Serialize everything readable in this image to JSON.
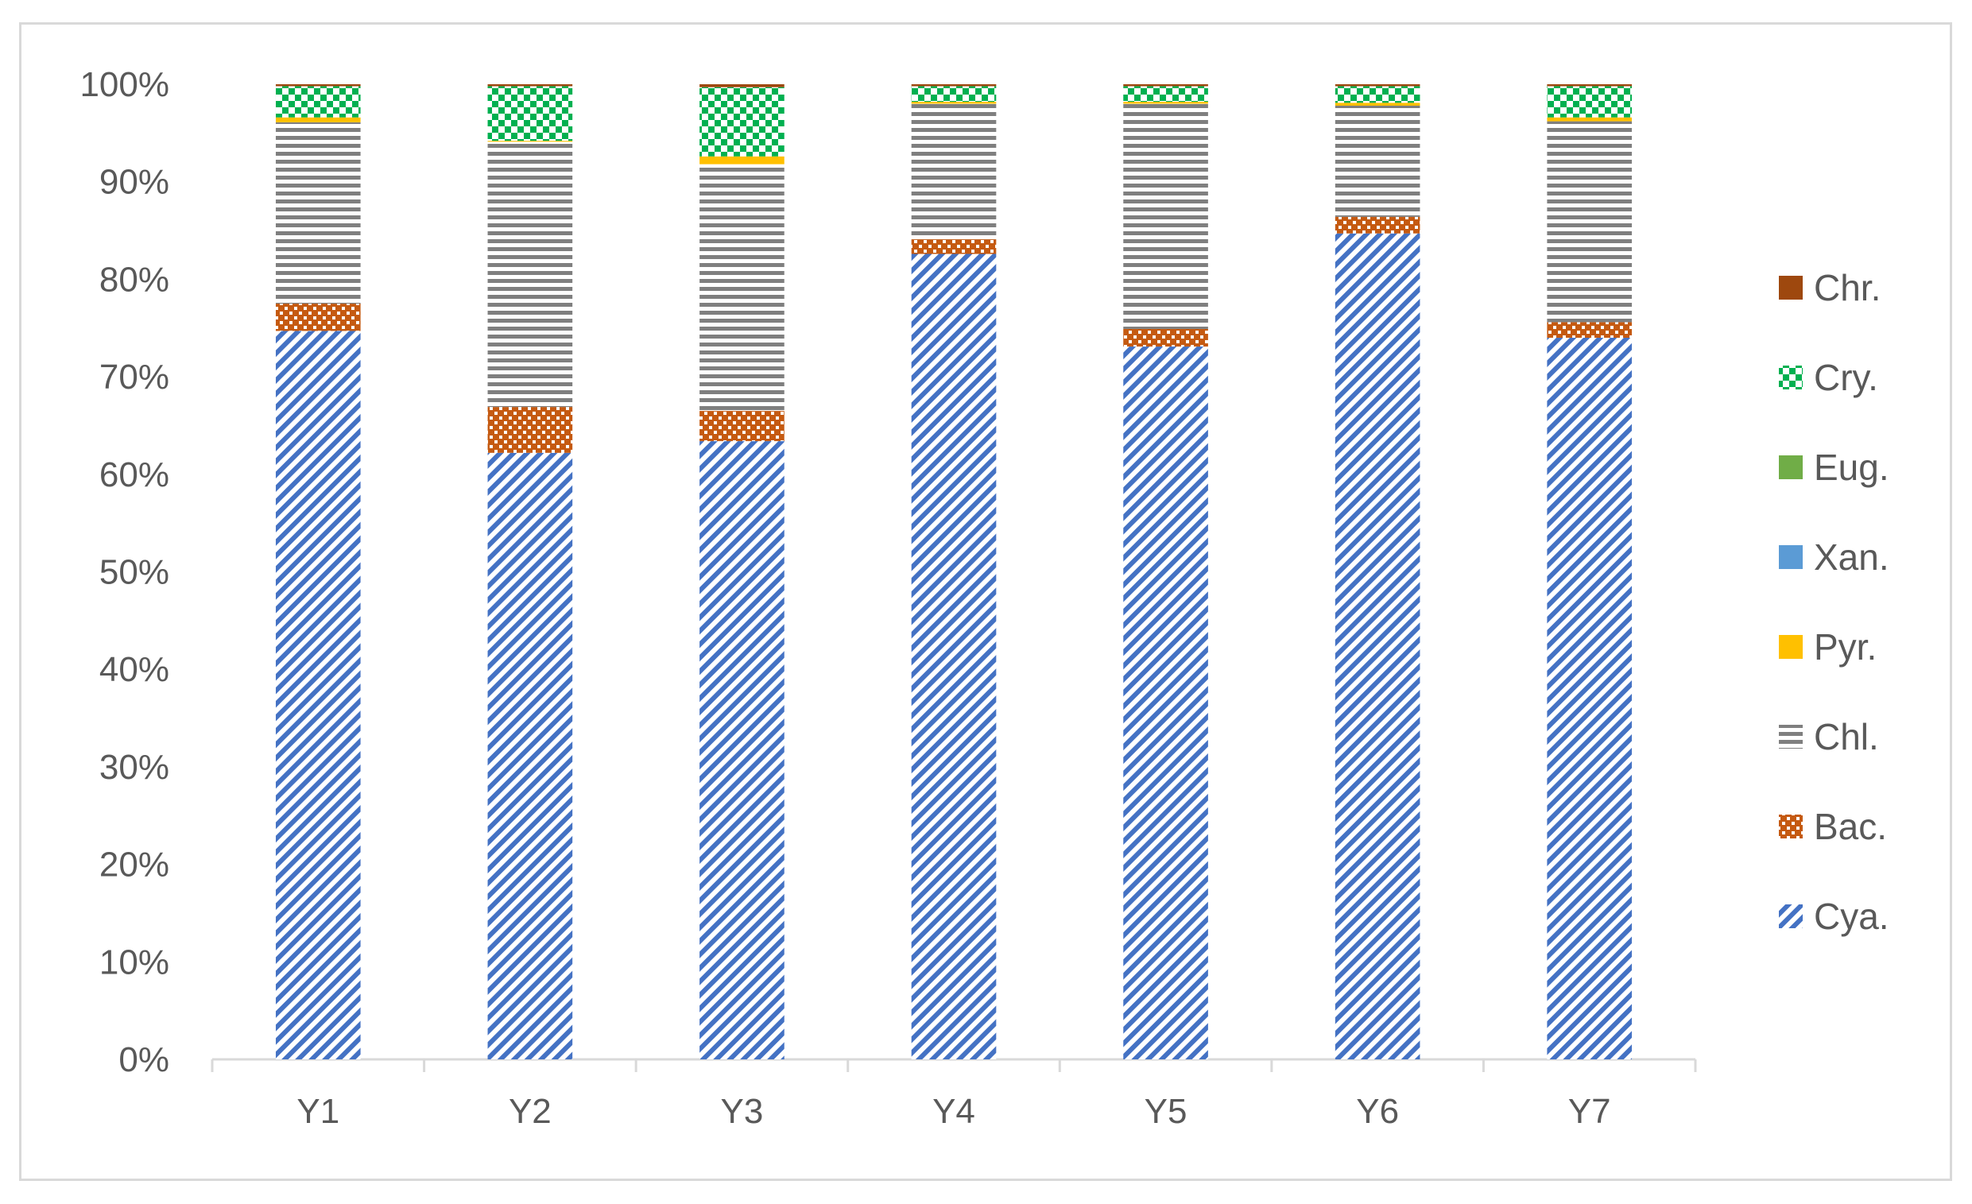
{
  "chart_data": {
    "type": "stacked-bar-percent",
    "title": "",
    "xlabel": "",
    "ylabel": "",
    "ylim": [
      0,
      100
    ],
    "y_ticks": [
      "0%",
      "10%",
      "20%",
      "30%",
      "40%",
      "50%",
      "60%",
      "70%",
      "80%",
      "90%",
      "100%"
    ],
    "categories": [
      "Y1",
      "Y2",
      "Y3",
      "Y4",
      "Y5",
      "Y6",
      "Y7"
    ],
    "legend_position": "right",
    "series": [
      {
        "name": "Cya.",
        "color": "#4472c4",
        "pattern": "diagonal-stripes",
        "values": [
          74.7,
          62.2,
          63.4,
          82.6,
          73.1,
          84.7,
          74.0
        ]
      },
      {
        "name": "Bac.",
        "color": "#c55a11",
        "pattern": "weave",
        "values": [
          2.8,
          4.7,
          3.1,
          1.5,
          1.8,
          1.7,
          1.6
        ]
      },
      {
        "name": "Chl.",
        "color": "#7f7f7f",
        "pattern": "horizontal-stripes",
        "values": [
          18.6,
          27.2,
          25.3,
          13.9,
          23.1,
          11.4,
          20.6
        ]
      },
      {
        "name": "Pyr.",
        "color": "#ffc000",
        "pattern": "solid",
        "values": [
          0.5,
          0.1,
          0.8,
          0.2,
          0.2,
          0.3,
          0.4
        ]
      },
      {
        "name": "Xan.",
        "color": "#5b9bd5",
        "pattern": "solid",
        "values": [
          0,
          0,
          0,
          0,
          0,
          0,
          0
        ]
      },
      {
        "name": "Eug.",
        "color": "#70ad47",
        "pattern": "solid",
        "values": [
          0,
          0,
          0,
          0,
          0,
          0,
          0
        ]
      },
      {
        "name": "Cry.",
        "color": "#00b050",
        "pattern": "checker",
        "values": [
          3.2,
          5.6,
          7.1,
          1.6,
          1.6,
          1.7,
          3.2
        ]
      },
      {
        "name": "Chr.",
        "color": "#9e480e",
        "pattern": "solid",
        "values": [
          0.2,
          0.2,
          0.3,
          0.2,
          0.2,
          0.2,
          0.2
        ]
      }
    ],
    "legend_order": [
      "Chr.",
      "Cry.",
      "Eug.",
      "Xan.",
      "Pyr.",
      "Chl.",
      "Bac.",
      "Cya."
    ]
  }
}
